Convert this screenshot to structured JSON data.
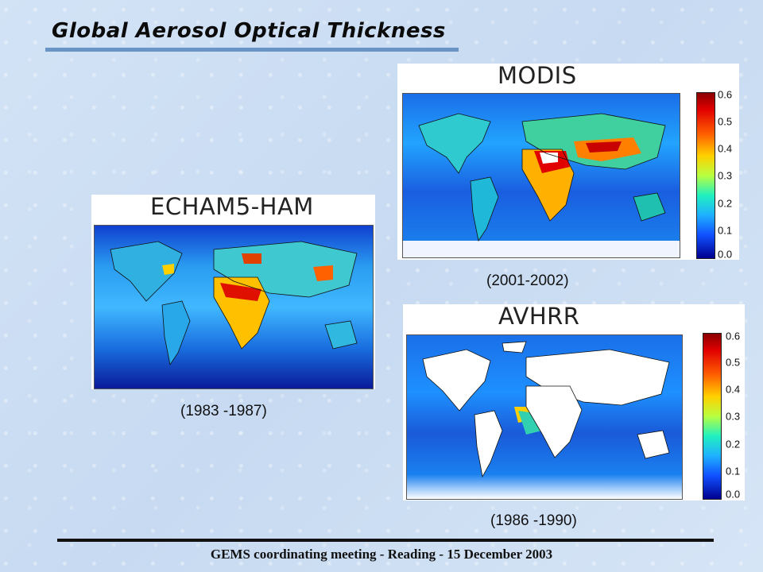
{
  "slide": {
    "title": "Global Aerosol Optical Thickness",
    "footer": "GEMS coordinating meeting - Reading - 15 December 2003"
  },
  "panels": {
    "modis": {
      "title": "MODIS",
      "period": "(2001-2002)"
    },
    "echam": {
      "title": "ECHAM5-HAM",
      "period": "(1983 -1987)"
    },
    "avhrr": {
      "title": "AVHRR",
      "period": "(1986 -1990)"
    }
  },
  "colorbar": {
    "ticks": [
      "0.6",
      "0.5",
      "0.4",
      "0.3",
      "0.2",
      "0.1",
      "0.0"
    ]
  },
  "colors": {
    "background": "#cfe0f4",
    "ocean_low": "#1a4fd8",
    "ocean_mid": "#24a6ff",
    "high": "#e01800"
  }
}
